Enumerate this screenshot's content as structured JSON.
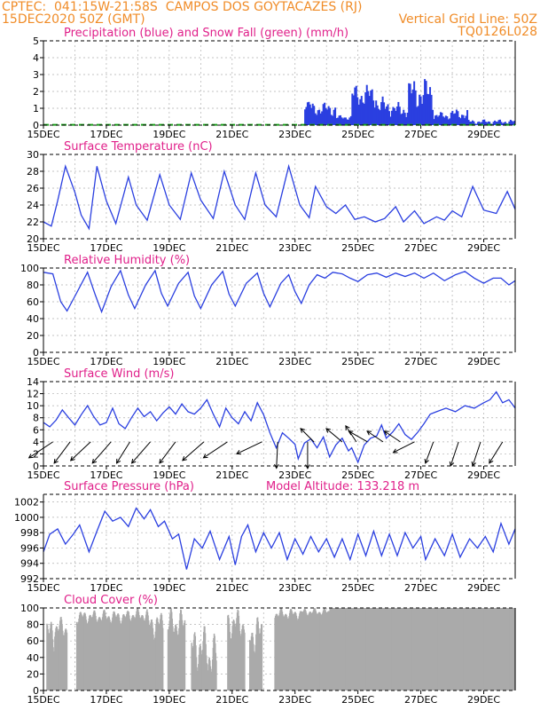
{
  "header": {
    "line1_left": "CPTEC:  041:15W-21:58S  CAMPOS DOS GOYTACAZES (RJ)",
    "line2_left": "15DEC2020 50Z (GMT)",
    "line2_right": "Vertical Grid Line: 50Z",
    "line3_right": "TQ0126L028"
  },
  "colors": {
    "header": "#f08c28",
    "title": "#e0208a",
    "series": "#2a3fe0",
    "snow": "#1aa01a",
    "cloud": "#aaaaaa"
  },
  "chart_data": [
    {
      "type": "bar",
      "title": "Precipitation (blue) and Snow Fall (green) (mm/h)",
      "ylim": [
        0,
        5
      ],
      "yticks": [
        0,
        1,
        2,
        3,
        4,
        5
      ],
      "xticks": [
        "15DEC",
        "17DEC",
        "19DEC",
        "21DEC",
        "23DEC",
        "25DEC",
        "27DEC",
        "29DEC"
      ],
      "x_start_day": 15,
      "x_end_day": 30,
      "series": [
        {
          "name": "Precipitation",
          "segments": [
            [
              23.3,
              23.5,
              0.9,
              1.5
            ],
            [
              23.5,
              24.3,
              0.5,
              1.4
            ],
            [
              24.3,
              24.8,
              0.3,
              0.6
            ],
            [
              24.8,
              25.6,
              1.0,
              2.5
            ],
            [
              25.6,
              26.1,
              0.5,
              1.7
            ],
            [
              26.1,
              26.6,
              0.4,
              1.4
            ],
            [
              26.6,
              27.4,
              0.8,
              2.9
            ],
            [
              27.4,
              27.9,
              0.3,
              0.8
            ],
            [
              27.9,
              28.5,
              0.3,
              1.0
            ],
            [
              28.5,
              30.0,
              0.05,
              0.35
            ]
          ]
        }
      ],
      "snow": [
        [
          15.0,
          30.0,
          0.02
        ]
      ]
    },
    {
      "type": "line",
      "title": "Surface Temperature (nC)",
      "ylim": [
        20,
        30
      ],
      "yticks": [
        20,
        22,
        24,
        26,
        28,
        30
      ],
      "xticks": [
        "15DEC",
        "17DEC",
        "19DEC",
        "21DEC",
        "23DEC",
        "25DEC",
        "27DEC",
        "29DEC"
      ],
      "points": [
        [
          15.0,
          22.0
        ],
        [
          15.25,
          21.5
        ],
        [
          15.45,
          24.5
        ],
        [
          15.7,
          28.6
        ],
        [
          16.0,
          25.5
        ],
        [
          16.2,
          22.8
        ],
        [
          16.45,
          21.2
        ],
        [
          16.7,
          28.6
        ],
        [
          17.0,
          24.5
        ],
        [
          17.3,
          21.8
        ],
        [
          17.7,
          27.3
        ],
        [
          17.95,
          24.0
        ],
        [
          18.3,
          22.2
        ],
        [
          18.7,
          27.6
        ],
        [
          19.0,
          24.0
        ],
        [
          19.35,
          22.3
        ],
        [
          19.7,
          27.8
        ],
        [
          20.0,
          24.6
        ],
        [
          20.4,
          22.4
        ],
        [
          20.75,
          28.0
        ],
        [
          21.1,
          24.0
        ],
        [
          21.4,
          22.3
        ],
        [
          21.75,
          27.8
        ],
        [
          22.05,
          24.0
        ],
        [
          22.4,
          22.6
        ],
        [
          22.8,
          28.6
        ],
        [
          23.15,
          24.0
        ],
        [
          23.45,
          22.5
        ],
        [
          23.65,
          26.2
        ],
        [
          24.0,
          23.8
        ],
        [
          24.3,
          23.0
        ],
        [
          24.6,
          24.0
        ],
        [
          24.9,
          22.3
        ],
        [
          25.2,
          22.6
        ],
        [
          25.55,
          22.0
        ],
        [
          25.85,
          22.4
        ],
        [
          26.2,
          23.8
        ],
        [
          26.45,
          22.0
        ],
        [
          26.8,
          23.3
        ],
        [
          27.1,
          21.8
        ],
        [
          27.5,
          22.6
        ],
        [
          27.75,
          22.2
        ],
        [
          28.0,
          23.3
        ],
        [
          28.3,
          22.6
        ],
        [
          28.65,
          26.2
        ],
        [
          29.0,
          23.4
        ],
        [
          29.4,
          23.0
        ],
        [
          29.75,
          25.6
        ],
        [
          30.0,
          23.5
        ]
      ]
    },
    {
      "type": "line",
      "title": "Relative Humidity (%)",
      "ylim": [
        0,
        100
      ],
      "yticks": [
        0,
        20,
        40,
        60,
        80,
        100
      ],
      "xticks": [
        "15DEC",
        "17DEC",
        "19DEC",
        "21DEC",
        "23DEC",
        "25DEC",
        "27DEC",
        "29DEC"
      ],
      "points": [
        [
          15.0,
          95
        ],
        [
          15.3,
          93
        ],
        [
          15.55,
          60
        ],
        [
          15.75,
          49
        ],
        [
          16.05,
          70
        ],
        [
          16.4,
          95
        ],
        [
          16.65,
          68
        ],
        [
          16.85,
          48
        ],
        [
          17.15,
          78
        ],
        [
          17.45,
          97
        ],
        [
          17.7,
          68
        ],
        [
          17.9,
          52
        ],
        [
          18.25,
          80
        ],
        [
          18.55,
          97
        ],
        [
          18.75,
          70
        ],
        [
          18.95,
          55
        ],
        [
          19.3,
          82
        ],
        [
          19.6,
          95
        ],
        [
          19.8,
          67
        ],
        [
          20.0,
          52
        ],
        [
          20.35,
          80
        ],
        [
          20.7,
          96
        ],
        [
          20.9,
          69
        ],
        [
          21.1,
          55
        ],
        [
          21.45,
          82
        ],
        [
          21.8,
          94
        ],
        [
          22.0,
          70
        ],
        [
          22.2,
          54
        ],
        [
          22.55,
          82
        ],
        [
          22.8,
          92
        ],
        [
          23.0,
          72
        ],
        [
          23.2,
          58
        ],
        [
          23.45,
          80
        ],
        [
          23.7,
          92
        ],
        [
          23.95,
          88
        ],
        [
          24.2,
          95
        ],
        [
          24.5,
          93
        ],
        [
          24.75,
          88
        ],
        [
          25.0,
          84
        ],
        [
          25.3,
          92
        ],
        [
          25.6,
          94
        ],
        [
          25.9,
          89
        ],
        [
          26.2,
          94
        ],
        [
          26.5,
          90
        ],
        [
          26.8,
          94
        ],
        [
          27.1,
          88
        ],
        [
          27.4,
          94
        ],
        [
          27.75,
          85
        ],
        [
          28.1,
          92
        ],
        [
          28.4,
          96
        ],
        [
          28.7,
          88
        ],
        [
          29.0,
          82
        ],
        [
          29.3,
          88
        ],
        [
          29.55,
          88
        ],
        [
          29.8,
          80
        ],
        [
          30.0,
          85
        ]
      ]
    },
    {
      "type": "line",
      "title": "Surface Wind (m/s)",
      "ylim": [
        0,
        14
      ],
      "yticks": [
        0,
        2,
        4,
        6,
        8,
        10,
        12,
        14
      ],
      "xticks": [
        "15DEC",
        "17DEC",
        "19DEC",
        "21DEC",
        "23DEC",
        "25DEC",
        "27DEC",
        "29DEC"
      ],
      "points": [
        [
          15.0,
          7.2
        ],
        [
          15.2,
          6.5
        ],
        [
          15.4,
          7.6
        ],
        [
          15.6,
          9.3
        ],
        [
          15.8,
          8.0
        ],
        [
          16.0,
          6.8
        ],
        [
          16.2,
          8.5
        ],
        [
          16.4,
          10.0
        ],
        [
          16.6,
          8.2
        ],
        [
          16.8,
          6.8
        ],
        [
          17.0,
          7.2
        ],
        [
          17.2,
          9.6
        ],
        [
          17.4,
          7.0
        ],
        [
          17.6,
          6.2
        ],
        [
          17.8,
          8.0
        ],
        [
          18.0,
          9.6
        ],
        [
          18.2,
          8.2
        ],
        [
          18.4,
          9.0
        ],
        [
          18.6,
          7.5
        ],
        [
          18.8,
          8.8
        ],
        [
          19.0,
          9.8
        ],
        [
          19.2,
          8.6
        ],
        [
          19.4,
          10.3
        ],
        [
          19.6,
          9.0
        ],
        [
          19.8,
          8.6
        ],
        [
          20.0,
          9.6
        ],
        [
          20.2,
          11.0
        ],
        [
          20.4,
          8.6
        ],
        [
          20.6,
          6.5
        ],
        [
          20.8,
          9.6
        ],
        [
          21.0,
          8.0
        ],
        [
          21.2,
          7.0
        ],
        [
          21.4,
          9.0
        ],
        [
          21.6,
          7.5
        ],
        [
          21.8,
          10.5
        ],
        [
          22.0,
          8.5
        ],
        [
          22.2,
          5.5
        ],
        [
          22.4,
          3.0
        ],
        [
          22.6,
          5.5
        ],
        [
          22.8,
          4.6
        ],
        [
          23.0,
          3.6
        ],
        [
          23.1,
          1.2
        ],
        [
          23.3,
          3.8
        ],
        [
          23.5,
          4.5
        ],
        [
          23.7,
          3.0
        ],
        [
          23.9,
          4.8
        ],
        [
          24.1,
          1.5
        ],
        [
          24.3,
          3.5
        ],
        [
          24.5,
          4.6
        ],
        [
          24.7,
          2.5
        ],
        [
          24.8,
          3.0
        ],
        [
          25.0,
          0.6
        ],
        [
          25.2,
          3.5
        ],
        [
          25.4,
          4.6
        ],
        [
          25.6,
          5.0
        ],
        [
          25.75,
          6.8
        ],
        [
          25.9,
          4.6
        ],
        [
          26.1,
          5.6
        ],
        [
          26.3,
          7.0
        ],
        [
          26.5,
          5.2
        ],
        [
          26.7,
          4.4
        ],
        [
          26.9,
          5.6
        ],
        [
          27.1,
          7.0
        ],
        [
          27.3,
          8.6
        ],
        [
          27.5,
          9.0
        ],
        [
          27.8,
          9.6
        ],
        [
          28.1,
          9.0
        ],
        [
          28.4,
          10.0
        ],
        [
          28.7,
          9.6
        ],
        [
          29.0,
          10.5
        ],
        [
          29.2,
          11.0
        ],
        [
          29.4,
          12.3
        ],
        [
          29.6,
          10.5
        ],
        [
          29.8,
          11.0
        ],
        [
          30.0,
          9.6
        ]
      ],
      "arrows": [
        [
          15.3,
          -0.9,
          -0.6
        ],
        [
          15.85,
          -0.6,
          -0.8
        ],
        [
          16.5,
          -0.75,
          -0.7
        ],
        [
          17.15,
          -0.7,
          -0.8
        ],
        [
          17.75,
          -0.5,
          -0.8
        ],
        [
          18.4,
          -0.7,
          -0.8
        ],
        [
          19.2,
          -0.6,
          -0.8
        ],
        [
          20.1,
          -0.8,
          -0.7
        ],
        [
          20.85,
          -0.9,
          -0.6
        ],
        [
          21.95,
          -0.95,
          -0.45
        ],
        [
          22.45,
          -0.05,
          -0.99
        ],
        [
          23.4,
          0.0,
          -1.0
        ],
        [
          23.6,
          -0.5,
          0.5
        ],
        [
          24.5,
          -0.6,
          0.5
        ],
        [
          24.95,
          -0.4,
          0.6
        ],
        [
          25.3,
          -0.7,
          0.4
        ],
        [
          25.8,
          -0.6,
          0.4
        ],
        [
          26.35,
          -0.6,
          0.4
        ],
        [
          26.8,
          -0.8,
          -0.4
        ],
        [
          27.4,
          -0.3,
          -0.8
        ],
        [
          28.2,
          -0.3,
          -0.9
        ],
        [
          28.9,
          -0.3,
          -0.9
        ],
        [
          29.6,
          -0.5,
          -0.8
        ]
      ]
    },
    {
      "type": "line",
      "title": "Surface Pressure (hPa)",
      "annotation": "Model Altitude: 133.218  m",
      "ylim": [
        992,
        1003
      ],
      "yticks": [
        992,
        994,
        996,
        998,
        1000,
        1002
      ],
      "xticks": [
        "15DEC",
        "17DEC",
        "19DEC",
        "21DEC",
        "23DEC",
        "25DEC",
        "27DEC",
        "29DEC"
      ],
      "points": [
        [
          15.0,
          995.5
        ],
        [
          15.2,
          997.8
        ],
        [
          15.45,
          998.5
        ],
        [
          15.7,
          996.5
        ],
        [
          15.95,
          997.8
        ],
        [
          16.15,
          999.0
        ],
        [
          16.45,
          995.5
        ],
        [
          16.7,
          998.2
        ],
        [
          16.95,
          1000.8
        ],
        [
          17.2,
          999.5
        ],
        [
          17.45,
          1000.0
        ],
        [
          17.7,
          998.8
        ],
        [
          17.95,
          1001.2
        ],
        [
          18.2,
          999.8
        ],
        [
          18.4,
          1001.0
        ],
        [
          18.65,
          998.8
        ],
        [
          18.85,
          999.5
        ],
        [
          19.1,
          997.2
        ],
        [
          19.3,
          997.8
        ],
        [
          19.55,
          993.2
        ],
        [
          19.8,
          997.2
        ],
        [
          20.05,
          996.0
        ],
        [
          20.3,
          998.2
        ],
        [
          20.6,
          994.5
        ],
        [
          20.9,
          997.5
        ],
        [
          21.1,
          993.8
        ],
        [
          21.3,
          997.5
        ],
        [
          21.5,
          999.0
        ],
        [
          21.75,
          995.5
        ],
        [
          22.0,
          998.0
        ],
        [
          22.25,
          996.0
        ],
        [
          22.5,
          998.0
        ],
        [
          22.75,
          994.5
        ],
        [
          23.0,
          997.2
        ],
        [
          23.25,
          995.2
        ],
        [
          23.5,
          997.5
        ],
        [
          23.75,
          995.5
        ],
        [
          24.0,
          997.2
        ],
        [
          24.25,
          994.8
        ],
        [
          24.5,
          997.2
        ],
        [
          24.75,
          994.5
        ],
        [
          25.0,
          997.8
        ],
        [
          25.25,
          995.0
        ],
        [
          25.5,
          998.2
        ],
        [
          25.75,
          995.0
        ],
        [
          26.0,
          997.8
        ],
        [
          26.25,
          995.0
        ],
        [
          26.5,
          998.0
        ],
        [
          26.75,
          996.0
        ],
        [
          27.0,
          997.5
        ],
        [
          27.15,
          994.5
        ],
        [
          27.45,
          997.2
        ],
        [
          27.75,
          995.0
        ],
        [
          28.0,
          997.8
        ],
        [
          28.25,
          994.8
        ],
        [
          28.55,
          997.2
        ],
        [
          28.8,
          996.0
        ],
        [
          29.05,
          997.5
        ],
        [
          29.3,
          995.5
        ],
        [
          29.55,
          999.2
        ],
        [
          29.8,
          996.5
        ],
        [
          30.0,
          998.5
        ]
      ]
    },
    {
      "type": "area",
      "title": "Cloud Cover (%)",
      "ylim": [
        0,
        100
      ],
      "yticks": [
        0,
        20,
        40,
        60,
        80,
        100
      ],
      "xticks": [
        "15DEC",
        "17DEC",
        "19DEC",
        "21DEC",
        "23DEC",
        "25DEC",
        "27DEC",
        "29DEC"
      ],
      "blocks": [
        [
          15.1,
          15.35,
          45,
          90
        ],
        [
          15.35,
          15.75,
          60,
          90
        ],
        [
          16.05,
          17.7,
          80,
          98
        ],
        [
          17.7,
          18.3,
          82,
          100
        ],
        [
          18.3,
          18.8,
          60,
          98
        ],
        [
          18.95,
          19.5,
          60,
          100
        ],
        [
          19.7,
          20.2,
          20,
          80
        ],
        [
          20.2,
          20.5,
          10,
          70
        ],
        [
          20.85,
          21.4,
          60,
          100
        ],
        [
          21.55,
          21.95,
          40,
          95
        ],
        [
          22.35,
          23.2,
          85,
          100
        ],
        [
          23.2,
          24.1,
          90,
          100
        ],
        [
          24.1,
          30.0,
          100,
          100
        ]
      ]
    }
  ]
}
